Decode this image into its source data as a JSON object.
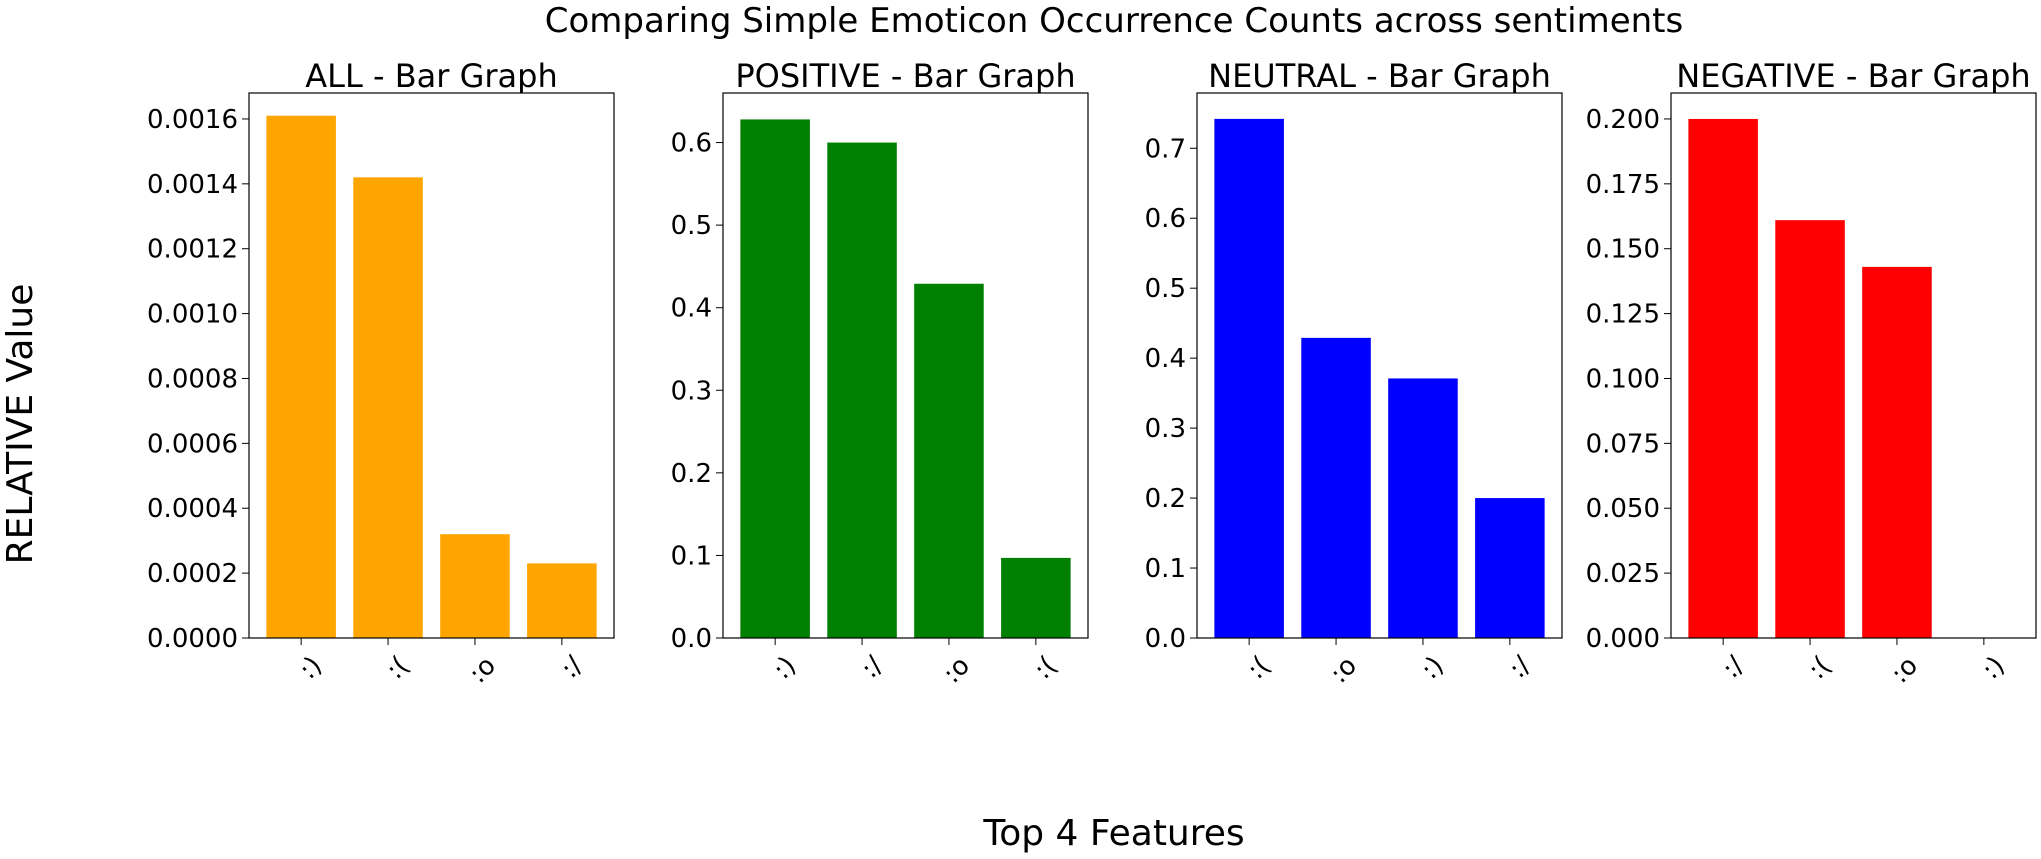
{
  "figure": {
    "suptitle": "Comparing Simple Emoticon Occurrence Counts across sentiments",
    "xlabel": "Top 4 Features",
    "ylabel": "RELATIVE Value"
  },
  "chart_data": [
    {
      "type": "bar",
      "title": "ALL - Bar Graph",
      "categories": [
        ":)",
        ":(",
        ":o",
        ":/"
      ],
      "values": [
        0.00161,
        0.00142,
        0.00032,
        0.00023
      ],
      "ylim": [
        0,
        0.00168
      ],
      "yticks": [
        0,
        0.0002,
        0.0004,
        0.0006,
        0.0008,
        0.001,
        0.0012,
        0.0014,
        0.0016
      ],
      "ytick_labels": [
        "0.0000",
        "0.0002",
        "0.0004",
        "0.0006",
        "0.0008",
        "0.0010",
        "0.0012",
        "0.0014",
        "0.0016"
      ],
      "color": "#ffa500",
      "grid": false
    },
    {
      "type": "bar",
      "title": "POSITIVE - Bar Graph",
      "categories": [
        ":)",
        ":/",
        ":o",
        ":("
      ],
      "values": [
        0.628,
        0.6,
        0.429,
        0.097
      ],
      "ylim": [
        0,
        0.66
      ],
      "yticks": [
        0,
        0.1,
        0.2,
        0.3,
        0.4,
        0.5,
        0.6
      ],
      "ytick_labels": [
        "0.0",
        "0.1",
        "0.2",
        "0.3",
        "0.4",
        "0.5",
        "0.6"
      ],
      "color": "#008000",
      "grid": false
    },
    {
      "type": "bar",
      "title": "NEUTRAL - Bar Graph",
      "categories": [
        ":(",
        ":o",
        ":)",
        ":/"
      ],
      "values": [
        0.742,
        0.429,
        0.371,
        0.2
      ],
      "ylim": [
        0,
        0.779
      ],
      "yticks": [
        0,
        0.1,
        0.2,
        0.3,
        0.4,
        0.5,
        0.6,
        0.7
      ],
      "ytick_labels": [
        "0.0",
        "0.1",
        "0.2",
        "0.3",
        "0.4",
        "0.5",
        "0.6",
        "0.7"
      ],
      "color": "#0000ff",
      "grid": false
    },
    {
      "type": "bar",
      "title": "NEGATIVE - Bar Graph",
      "categories": [
        ":/",
        ":(",
        ":o",
        ":)"
      ],
      "values": [
        0.2,
        0.161,
        0.143,
        0.0
      ],
      "ylim": [
        0,
        0.21
      ],
      "yticks": [
        0,
        0.025,
        0.05,
        0.075,
        0.1,
        0.125,
        0.15,
        0.175,
        0.2
      ],
      "ytick_labels": [
        "0.000",
        "0.025",
        "0.050",
        "0.075",
        "0.100",
        "0.125",
        "0.150",
        "0.175",
        "0.200"
      ],
      "color": "#ff0000",
      "grid": false
    }
  ]
}
